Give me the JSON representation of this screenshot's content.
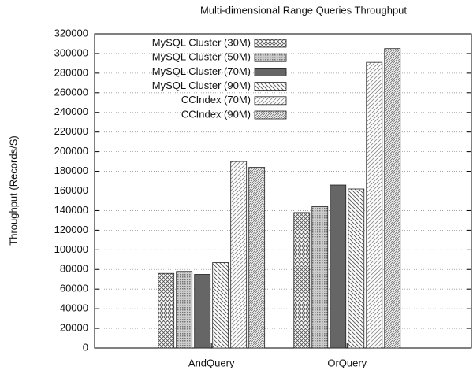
{
  "chart_data": {
    "type": "bar",
    "title": "Multi-dimensional Range Queries Throughput",
    "y_label": "Throughput (Records/S)",
    "categories": [
      "AndQuery",
      "OrQuery"
    ],
    "series": [
      {
        "name": "MySQL Cluster (30M)",
        "color": "#555555",
        "pattern": "crosshatch",
        "values": [
          76000,
          138000
        ]
      },
      {
        "name": "MySQL Cluster (50M)",
        "color": "#777777",
        "pattern": "dots",
        "values": [
          78000,
          144000
        ]
      },
      {
        "name": "MySQL Cluster (70M)",
        "color": "#666666",
        "pattern": "solid",
        "values": [
          75000,
          166000
        ]
      },
      {
        "name": "MySQL Cluster (90M)",
        "color": "#555555",
        "pattern": "backslash",
        "values": [
          87000,
          162000
        ]
      },
      {
        "name": "CCIndex (70M)",
        "color": "#888888",
        "pattern": "slash",
        "values": [
          190000,
          291000
        ]
      },
      {
        "name": "CCIndex (90M)",
        "color": "#777777",
        "pattern": "dense",
        "values": [
          184000,
          305000
        ]
      }
    ],
    "ylim": [
      0,
      320000
    ],
    "yticks": [
      0,
      20000,
      40000,
      60000,
      80000,
      100000,
      120000,
      140000,
      160000,
      180000,
      200000,
      220000,
      240000,
      260000,
      280000,
      300000,
      320000
    ],
    "grid": true,
    "legend": "upper-left"
  }
}
